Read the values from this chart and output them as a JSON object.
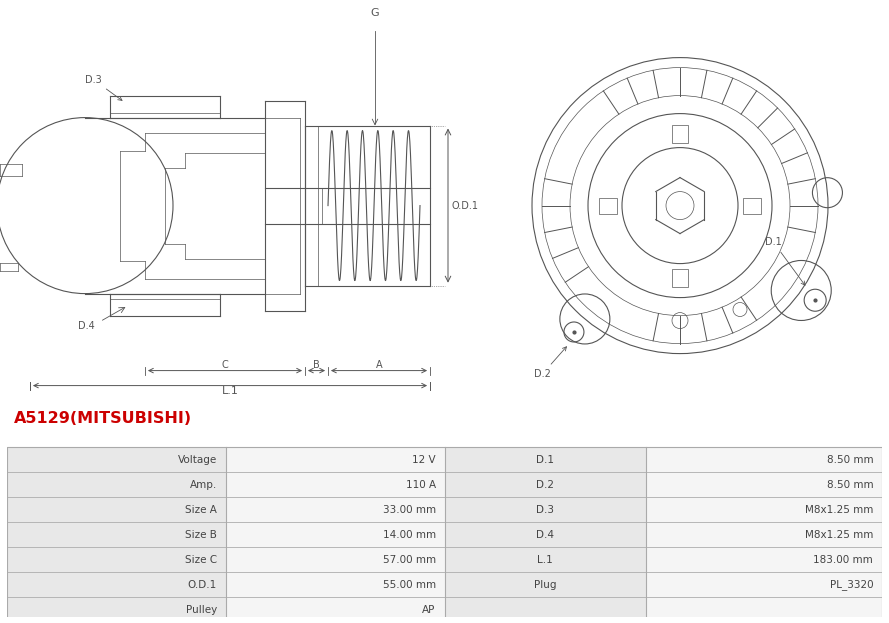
{
  "title": "A5129(MITSUBISHI)",
  "title_color": "#cc0000",
  "bg_color": "#ffffff",
  "table_label_bg": "#e8e8e8",
  "table_value_bg": "#f5f5f5",
  "table_data": [
    [
      "Voltage",
      "12 V",
      "D.1",
      "8.50 mm"
    ],
    [
      "Amp.",
      "110 A",
      "D.2",
      "8.50 mm"
    ],
    [
      "Size A",
      "33.00 mm",
      "D.3",
      "M8x1.25 mm"
    ],
    [
      "Size B",
      "14.00 mm",
      "D.4",
      "M8x1.25 mm"
    ],
    [
      "Size C",
      "57.00 mm",
      "L.1",
      "183.00 mm"
    ],
    [
      "O.D.1",
      "55.00 mm",
      "Plug",
      "PL_3320"
    ],
    [
      "Pulley",
      "AP",
      "",
      ""
    ]
  ],
  "line_color": "#555555",
  "label_fontsize": 7,
  "table_fontsize": 7.5,
  "border_color": "#aaaaaa"
}
